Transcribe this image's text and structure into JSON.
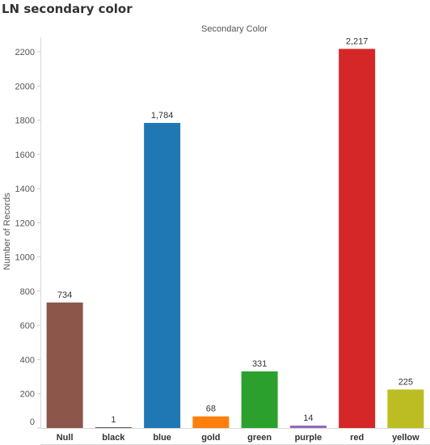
{
  "page": {
    "title": "LN secondary color"
  },
  "chart_data": {
    "type": "bar",
    "title": "",
    "xlabel": "Secondary Color",
    "ylabel": "Number of Records",
    "categories": [
      "Null",
      "black",
      "blue",
      "gold",
      "green",
      "purple",
      "red",
      "yellow"
    ],
    "values": [
      734,
      1,
      1784,
      68,
      331,
      14,
      2217,
      225
    ],
    "data_labels": [
      "734",
      "1",
      "1,784",
      "68",
      "331",
      "14",
      "2,217",
      "225"
    ],
    "colors": [
      "#8c564b",
      "#333333",
      "#1f77b4",
      "#ff7f0e",
      "#2ca02c",
      "#9467bd",
      "#d62728",
      "#bcbd22"
    ],
    "ylim": [
      0,
      2300
    ],
    "yticks": [
      0,
      200,
      400,
      600,
      800,
      1000,
      1200,
      1400,
      1600,
      1800,
      2000,
      2200
    ],
    "xlabel_position": "top",
    "legend": "none",
    "grid": false
  }
}
